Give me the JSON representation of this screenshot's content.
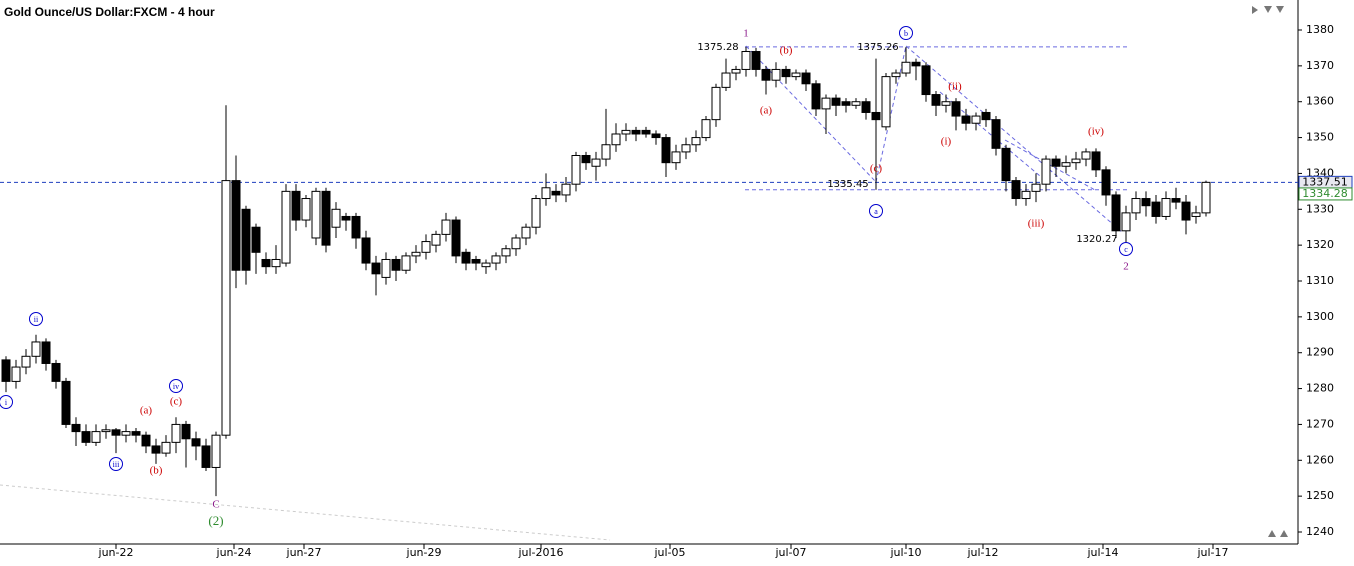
{
  "chart_data": {
    "type": "candlestick",
    "title": "Gold Ounce/US Dollar:FXCM - 4 hour",
    "open": [
      1288,
      1282,
      1286,
      1289,
      1293,
      1287,
      1282,
      1270,
      1268,
      1265,
      1268,
      1268.5,
      1267,
      1268,
      1267,
      1264,
      1262,
      1265,
      1270,
      1266,
      1264,
      1258,
      1267,
      1338,
      1330,
      1325,
      1316,
      1314,
      1315,
      1335,
      1327,
      1322,
      1335,
      1325,
      1328,
      1328,
      1322,
      1315,
      1311,
      1316,
      1313,
      1317,
      1318,
      1320,
      1323,
      1327,
      1318,
      1316,
      1314,
      1315,
      1317,
      1319,
      1322,
      1325,
      1333,
      1335,
      1334,
      1337,
      1345,
      1342,
      1344,
      1348,
      1351,
      1352,
      1352,
      1351,
      1350,
      1343,
      1346,
      1348,
      1350,
      1355,
      1364,
      1368,
      1369,
      1374,
      1369,
      1366,
      1369,
      1367,
      1368,
      1365,
      1358,
      1361,
      1360,
      1359,
      1360,
      1357,
      1353,
      1367,
      1368,
      1371,
      1370,
      1362,
      1359,
      1360,
      1356,
      1354,
      1357,
      1355,
      1347,
      1338,
      1333,
      1335,
      1337,
      1344,
      1342,
      1343,
      1344,
      1346,
      1341,
      1334,
      1324,
      1329,
      1333,
      1332,
      1328,
      1333,
      1332,
      1328,
      1329
    ],
    "high": [
      1289,
      1288,
      1291,
      1295,
      1294,
      1288,
      1283,
      1272,
      1270,
      1270,
      1270,
      1269,
      1270,
      1269,
      1268,
      1266,
      1267,
      1272,
      1271,
      1268,
      1266,
      1268,
      1359,
      1345,
      1331,
      1326,
      1318,
      1320,
      1337,
      1337,
      1334,
      1336,
      1336,
      1332,
      1329,
      1329,
      1324,
      1317,
      1318,
      1317,
      1318,
      1320,
      1323,
      1324,
      1329,
      1328,
      1319,
      1317,
      1316,
      1318,
      1320,
      1323,
      1326,
      1334,
      1340,
      1337,
      1339,
      1346,
      1346,
      1346,
      1358,
      1354,
      1354,
      1353,
      1353,
      1352,
      1351,
      1348,
      1350,
      1352,
      1356,
      1365,
      1372,
      1370,
      1375.28,
      1375,
      1370,
      1371,
      1370,
      1369,
      1369,
      1366,
      1362,
      1362,
      1361,
      1361,
      1361,
      1372,
      1368,
      1369,
      1375.26,
      1372,
      1371,
      1363,
      1362,
      1361,
      1358,
      1357,
      1358,
      1356,
      1348,
      1339,
      1337,
      1340,
      1345,
      1345,
      1345,
      1346,
      1347,
      1347,
      1342,
      1335,
      1331,
      1335,
      1335,
      1334,
      1335,
      1336,
      1334,
      1331,
      1338
    ],
    "low": [
      1279,
      1280,
      1284,
      1287,
      1285,
      1280,
      1269,
      1264,
      1264,
      1264,
      1266,
      1262,
      1265,
      1265,
      1262,
      1259,
      1261,
      1262,
      1258,
      1260,
      1257,
      1250,
      1266,
      1308,
      1309,
      1312,
      1312,
      1312,
      1314,
      1324,
      1325,
      1320,
      1318,
      1322,
      1324,
      1319,
      1313,
      1306,
      1309,
      1310,
      1312,
      1315,
      1316,
      1318,
      1321,
      1315,
      1313,
      1313,
      1312,
      1313,
      1315,
      1317,
      1320,
      1323,
      1331,
      1332,
      1332,
      1335,
      1341,
      1338,
      1342,
      1346,
      1349,
      1349,
      1350,
      1348,
      1339,
      1341,
      1344,
      1346,
      1349,
      1353,
      1363,
      1366,
      1367,
      1367,
      1362,
      1364,
      1365,
      1366,
      1363,
      1356,
      1351,
      1356,
      1357,
      1358,
      1355,
      1335.45,
      1352,
      1365,
      1367,
      1366,
      1360,
      1356,
      1357,
      1352,
      1352,
      1352,
      1353,
      1345,
      1335,
      1331,
      1331,
      1332,
      1335,
      1339,
      1340,
      1341,
      1342,
      1339,
      1331,
      1322,
      1320.27,
      1327,
      1328,
      1326,
      1327,
      1330,
      1323,
      1326,
      1328
    ],
    "close": [
      1282,
      1286,
      1289,
      1293,
      1287,
      1282,
      1270,
      1268,
      1265,
      1268,
      1268.5,
      1267,
      1268,
      1267,
      1264,
      1262,
      1265,
      1270,
      1266,
      1264,
      1258,
      1267,
      1338,
      1313,
      1313,
      1318,
      1314,
      1316,
      1335,
      1327,
      1333,
      1335,
      1320,
      1330,
      1327,
      1322,
      1315,
      1312,
      1316,
      1313,
      1317,
      1318,
      1321,
      1323,
      1327,
      1317,
      1315,
      1315,
      1315,
      1317,
      1319,
      1322,
      1325,
      1333,
      1336,
      1334,
      1337,
      1345,
      1343,
      1344,
      1348,
      1351,
      1352,
      1351,
      1351,
      1350,
      1343,
      1346,
      1348,
      1350,
      1355,
      1364,
      1368,
      1369,
      1374,
      1369,
      1366,
      1369,
      1367,
      1368,
      1365,
      1358,
      1361,
      1359,
      1359,
      1360,
      1357,
      1355,
      1367,
      1368,
      1371,
      1370,
      1362,
      1359,
      1360,
      1356,
      1354,
      1356,
      1355,
      1347,
      1338,
      1333,
      1335,
      1337,
      1344,
      1342,
      1343,
      1344,
      1346,
      1341,
      1334,
      1324,
      1329,
      1333,
      1331,
      1328,
      1333,
      1332,
      1327,
      1329,
      1337.51
    ],
    "ylim": [
      1237,
      1384
    ],
    "yticks": [
      1240,
      1250,
      1260,
      1270,
      1280,
      1290,
      1300,
      1310,
      1320,
      1330,
      1340,
      1350,
      1360,
      1370,
      1380
    ],
    "xticks": [
      {
        "value": 11,
        "label": "jun-22"
      },
      {
        "value": 22.8,
        "label": "jun-24"
      },
      {
        "value": 29.8,
        "label": "jun-27"
      },
      {
        "value": 41.8,
        "label": "jun-29"
      },
      {
        "value": 53.5,
        "label": "jul-2016"
      },
      {
        "value": 66.4,
        "label": "jul-05"
      },
      {
        "value": 78.5,
        "label": "jul-07"
      },
      {
        "value": 90,
        "label": "jul-10"
      },
      {
        "value": 97.7,
        "label": "jul-12"
      },
      {
        "value": 109.7,
        "label": "jul-14"
      },
      {
        "value": 120.7,
        "label": "jul-17"
      }
    ],
    "price_tags": [
      {
        "value": 1337.51,
        "color": "#1f3fbf"
      },
      {
        "value": 1334.28,
        "color": "#2e8b2e"
      }
    ],
    "annotations": [
      {
        "text": "1",
        "color": "#8b1a8b"
      },
      {
        "text": "(b)",
        "color": "#cc0000"
      },
      {
        "text": "(a)",
        "color": "#cc0000"
      },
      {
        "text": "b",
        "color": "#0000cc",
        "circled": true
      },
      {
        "text": "(c)",
        "color": "#cc0000"
      },
      {
        "text": "a",
        "color": "#0000cc",
        "circled": true
      },
      {
        "text": "(ii)",
        "color": "#cc0000"
      },
      {
        "text": "(i)",
        "color": "#cc0000"
      },
      {
        "text": "(iii)",
        "color": "#cc0000"
      },
      {
        "text": "(iv)",
        "color": "#cc0000"
      },
      {
        "text": "c",
        "color": "#0000cc",
        "circled": true
      },
      {
        "text": "2",
        "color": "#8b1a8b"
      },
      {
        "text": "i",
        "color": "#0000cc",
        "circled": true
      },
      {
        "text": "ii",
        "color": "#0000cc",
        "circled": true
      },
      {
        "text": "iii",
        "color": "#0000cc",
        "circled": true
      },
      {
        "text": "iv",
        "color": "#0000cc",
        "circled": true
      },
      {
        "text": "(a)",
        "color": "#cc0000"
      },
      {
        "text": "(b)",
        "color": "#cc0000"
      },
      {
        "text": "(c)",
        "color": "#cc0000"
      },
      {
        "text": "C",
        "color": "#8b1a8b"
      },
      {
        "text": "(2)",
        "color": "#2e8b2e"
      },
      {
        "text": 1375.28,
        "color": "#000000"
      },
      {
        "text": 1375.26,
        "color": "#000000"
      },
      {
        "text": 1335.45,
        "color": "#000000"
      },
      {
        "text": 1320.27,
        "color": "#000000"
      }
    ]
  }
}
